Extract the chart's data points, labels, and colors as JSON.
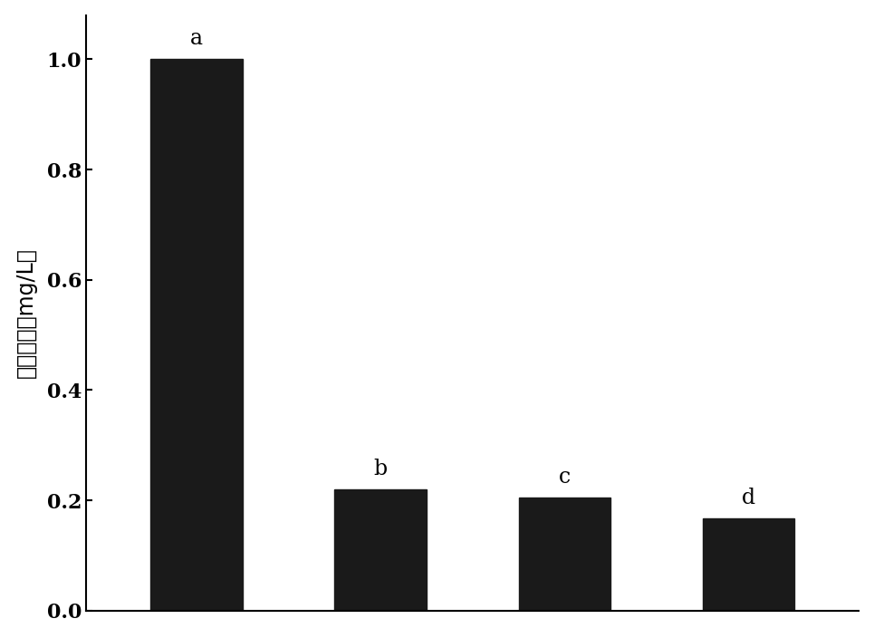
{
  "categories": [
    "",
    "",
    "",
    ""
  ],
  "values": [
    1.0,
    0.22,
    0.205,
    0.168
  ],
  "labels": [
    "a",
    "b",
    "c",
    "d"
  ],
  "bar_color": "#1a1a1a",
  "ylabel": "苯酚浓度（mg/L）",
  "ylim": [
    0,
    1.08
  ],
  "yticks": [
    0.0,
    0.2,
    0.4,
    0.6,
    0.8,
    1.0
  ],
  "bar_width": 0.5,
  "background_color": "#ffffff",
  "ylabel_fontsize": 17,
  "label_fontsize": 17,
  "tick_fontsize": 16
}
